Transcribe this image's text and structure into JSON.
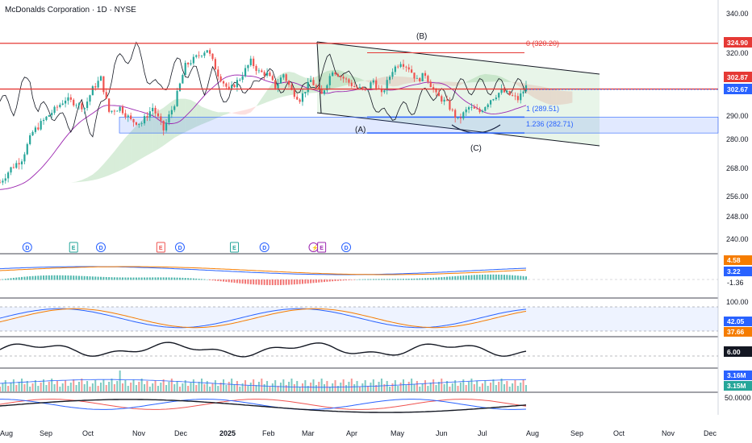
{
  "header": {
    "title": "McDonalds Corporation · 1D · NYSE"
  },
  "colors": {
    "up": "#26a69a",
    "down": "#ef5350",
    "hline": "#e53935",
    "axis_blue": "#2962ff",
    "cloud_green": "#4caf50",
    "cloud_red": "#ef5350",
    "channel": "#131722",
    "purple": "#9c27b0",
    "fib_blue": "#2962ff"
  },
  "chart_data": {
    "type": "candlestick",
    "price_axis": {
      "ticks": [
        "340.00",
        "320.00",
        "290.00",
        "280.00",
        "268.00",
        "256.00",
        "248.00",
        "240.00"
      ],
      "ylim": [
        236,
        342
      ]
    },
    "time_axis": {
      "labels": [
        "Aug",
        "Sep",
        "Oct",
        "Nov",
        "Dec",
        "2025",
        "Feb",
        "Mar",
        "Apr",
        "May",
        "Jun",
        "Jul",
        "Aug",
        "Sep",
        "Oct",
        "Nov",
        "Dec"
      ]
    },
    "horizontal_levels": [
      {
        "price": 324.9,
        "label": "324.90"
      },
      {
        "price": 302.87,
        "label": "302.87"
      }
    ],
    "last_price": {
      "price": 302.67,
      "label": "302.67"
    },
    "fib_levels": [
      {
        "label": "0 (320.20)",
        "price": 320.2
      },
      {
        "label": "1 (289.51)",
        "price": 289.51
      },
      {
        "label": "1.236 (282.71)",
        "price": 282.71
      }
    ],
    "wave_labels": [
      "(A)",
      "(B)",
      "(C)"
    ],
    "ohlc_close_path": [
      [
        0,
        262
      ],
      [
        4,
        268
      ],
      [
        8,
        272
      ],
      [
        12,
        283
      ],
      [
        16,
        288
      ],
      [
        20,
        293
      ],
      [
        24,
        298
      ],
      [
        28,
        296
      ],
      [
        31,
        294
      ],
      [
        34,
        303
      ],
      [
        37,
        308
      ],
      [
        40,
        292
      ],
      [
        44,
        294
      ],
      [
        48,
        288
      ],
      [
        52,
        287
      ],
      [
        56,
        294
      ],
      [
        60,
        284
      ],
      [
        64,
        296
      ],
      [
        68,
        314
      ],
      [
        72,
        318
      ],
      [
        76,
        322
      ],
      [
        80,
        310
      ],
      [
        84,
        302
      ],
      [
        88,
        308
      ],
      [
        92,
        316
      ],
      [
        95,
        311
      ],
      [
        98,
        310
      ],
      [
        101,
        304
      ],
      [
        104,
        310
      ],
      [
        107,
        302
      ],
      [
        110,
        298
      ],
      [
        114,
        307
      ],
      [
        118,
        300
      ],
      [
        122,
        312
      ],
      [
        126,
        308
      ],
      [
        130,
        304
      ],
      [
        134,
        302
      ],
      [
        137,
        307
      ],
      [
        140,
        300
      ],
      [
        144,
        312
      ],
      [
        147,
        316
      ],
      [
        150,
        313
      ],
      [
        153,
        307
      ],
      [
        156,
        310
      ],
      [
        160,
        300
      ],
      [
        164,
        296
      ],
      [
        168,
        288
      ],
      [
        172,
        294
      ],
      [
        176,
        292
      ],
      [
        180,
        298
      ],
      [
        184,
        302
      ],
      [
        187,
        300
      ],
      [
        190,
        298
      ],
      [
        193,
        304
      ]
    ],
    "events": [
      {
        "type": "dividend",
        "label": "D",
        "pos": 10
      },
      {
        "type": "earnings",
        "label": "E",
        "pos": 27
      },
      {
        "type": "dividend",
        "label": "D",
        "pos": 37
      },
      {
        "type": "earnings",
        "label": "E",
        "pos": 59
      },
      {
        "type": "dividend",
        "label": "D",
        "pos": 66
      },
      {
        "type": "earnings",
        "label": "E",
        "pos": 86
      },
      {
        "type": "dividend",
        "label": "D",
        "pos": 97
      },
      {
        "type": "split",
        "label": "⚡",
        "pos": 115
      },
      {
        "type": "earnings-upcoming",
        "label": "E",
        "pos": 118
      },
      {
        "type": "dividend-upcoming",
        "label": "D",
        "pos": 127
      }
    ],
    "indicators": {
      "macd": {
        "values": [
          "4.58",
          "3.22",
          "-1.36"
        ]
      },
      "stoch": {
        "ticks": [
          "100.00"
        ],
        "values": [
          "42.05",
          "37.66"
        ]
      },
      "osc": {
        "value": "6.00"
      },
      "volume": {
        "values": [
          "3.16M",
          "3.15M"
        ]
      },
      "dmi": {
        "ticks": [
          "50.0000"
        ]
      }
    }
  }
}
